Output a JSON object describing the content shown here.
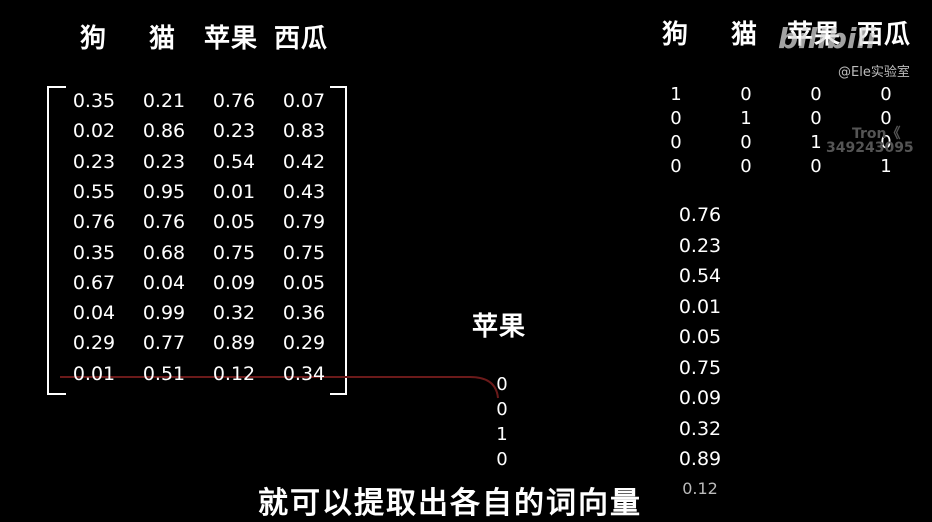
{
  "left_matrix": {
    "headers": [
      "狗",
      "猫",
      "苹果",
      "西瓜"
    ],
    "rows": [
      [
        "0.35",
        "0.21",
        "0.76",
        "0.07"
      ],
      [
        "0.02",
        "0.86",
        "0.23",
        "0.83"
      ],
      [
        "0.23",
        "0.23",
        "0.54",
        "0.42"
      ],
      [
        "0.55",
        "0.95",
        "0.01",
        "0.43"
      ],
      [
        "0.76",
        "0.76",
        "0.05",
        "0.79"
      ],
      [
        "0.35",
        "0.68",
        "0.75",
        "0.75"
      ],
      [
        "0.67",
        "0.04",
        "0.09",
        "0.05"
      ],
      [
        "0.04",
        "0.99",
        "0.32",
        "0.36"
      ],
      [
        "0.29",
        "0.77",
        "0.89",
        "0.29"
      ],
      [
        "0.01",
        "0.51",
        "0.12",
        "0.34"
      ]
    ]
  },
  "onehot_matrix": {
    "headers": [
      "狗",
      "猫",
      "苹果",
      "西瓜"
    ],
    "rows": [
      [
        "1",
        "0",
        "0",
        "0"
      ],
      [
        "0",
        "1",
        "0",
        "0"
      ],
      [
        "0",
        "0",
        "1",
        "0"
      ],
      [
        "0",
        "0",
        "0",
        "1"
      ]
    ]
  },
  "apple_onehot": {
    "label": "苹果",
    "values": [
      "0",
      "0",
      "1",
      "0"
    ]
  },
  "result_vector": [
    "0.76",
    "0.23",
    "0.54",
    "0.01",
    "0.05",
    "0.75",
    "0.09",
    "0.32",
    "0.89",
    "0.12"
  ],
  "watermark": {
    "logo": "bilibili",
    "channel": "@Ele实验室",
    "faint_name": "Tron《",
    "faint_id": "349243095"
  },
  "subtitle": "就可以提取出各自的词向量"
}
